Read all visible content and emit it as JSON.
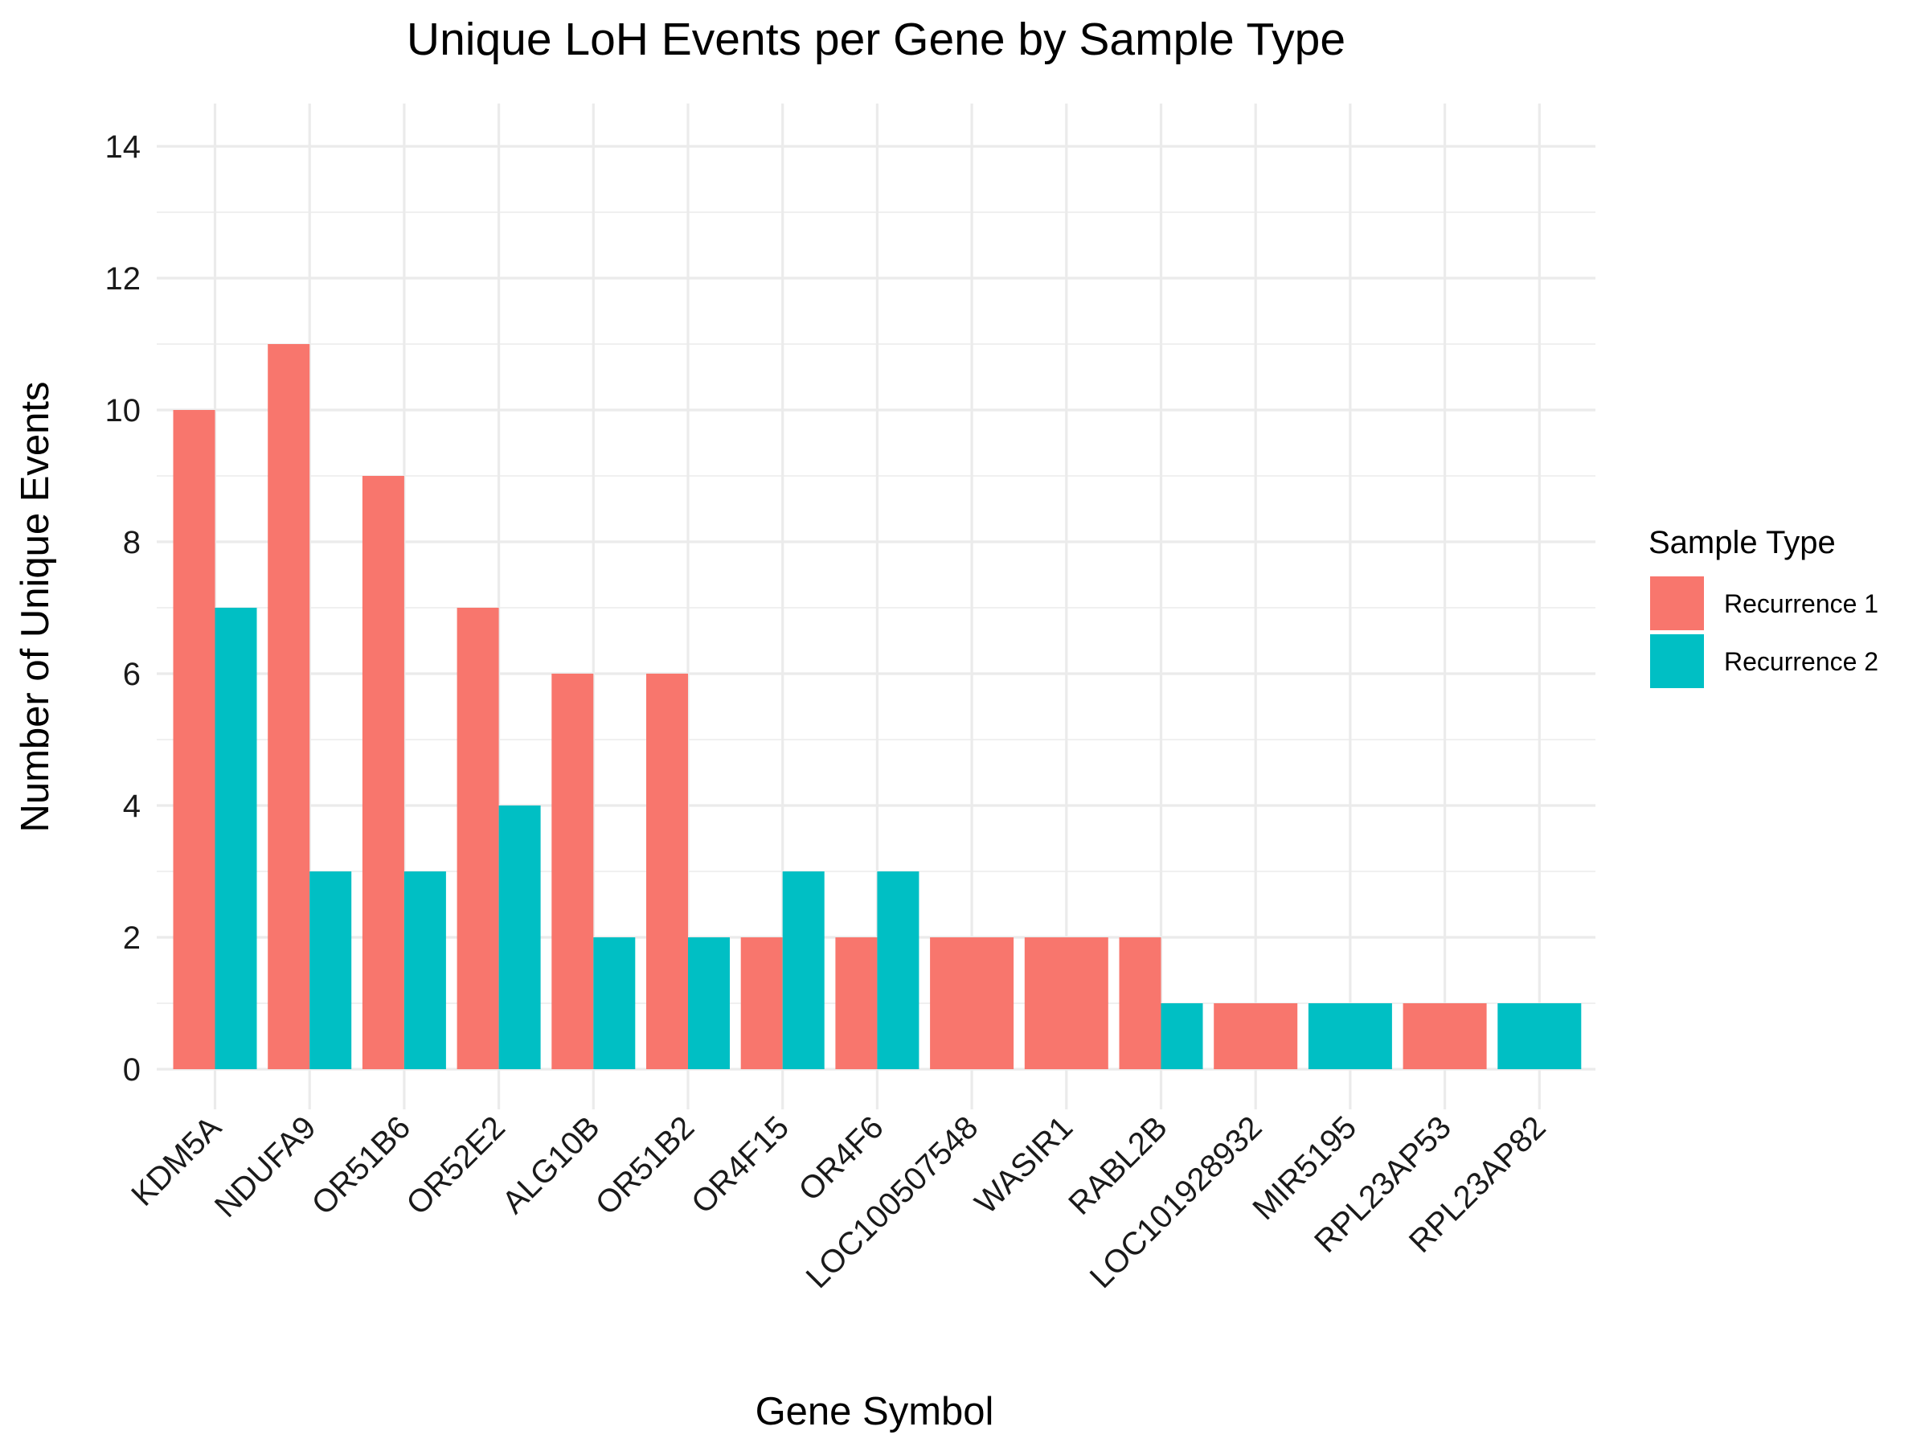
{
  "chart_data": {
    "type": "bar",
    "title": "Unique LoH Events per Gene by Sample Type",
    "xlabel": "Gene Symbol",
    "ylabel": "Number of Unique Events",
    "ylim": [
      0,
      14
    ],
    "yticks": [
      0,
      2,
      4,
      6,
      8,
      10,
      12,
      14
    ],
    "grid": true,
    "legend_position": "right",
    "legend_title": "Sample Type",
    "categories": [
      "KDM5A",
      "NDUFA9",
      "OR51B6",
      "OR52E2",
      "ALG10B",
      "OR51B2",
      "OR4F15",
      "OR4F6",
      "LOC100507548",
      "WASIR1",
      "RABL2B",
      "LOC101928932",
      "MIR5195",
      "RPL23AP53",
      "RPL23AP82"
    ],
    "series": [
      {
        "name": "Recurrence 1",
        "color": "#F8766D",
        "values": [
          10,
          11,
          9,
          7,
          6,
          6,
          2,
          2,
          2,
          2,
          2,
          1,
          null,
          1,
          null
        ]
      },
      {
        "name": "Recurrence 2",
        "color": "#00BFC4",
        "values": [
          7,
          3,
          3,
          4,
          2,
          2,
          3,
          3,
          null,
          null,
          1,
          null,
          1,
          null,
          1
        ]
      }
    ]
  }
}
